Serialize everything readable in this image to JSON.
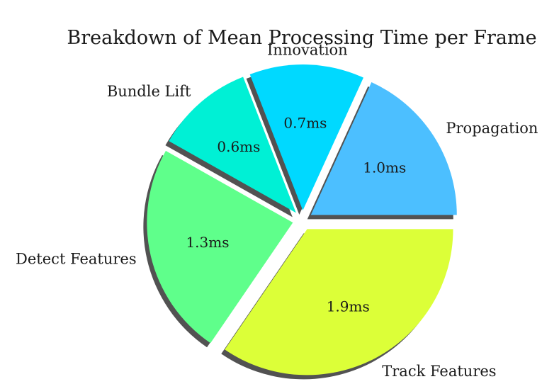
{
  "chart_data": {
    "type": "pie",
    "title": "Breakdown of Mean Processing Time per Frame",
    "slices": [
      {
        "label": "Propagation",
        "value": 1.0,
        "display": "1.0ms",
        "color": "#4cbfff"
      },
      {
        "label": "Innovation",
        "value": 0.7,
        "display": "0.7ms",
        "color": "#00d9ff"
      },
      {
        "label": "Bundle Lift",
        "value": 0.6,
        "display": "0.6ms",
        "color": "#00f0d5"
      },
      {
        "label": "Detect Features",
        "value": 1.3,
        "display": "1.3ms",
        "color": "#5fff8b"
      },
      {
        "label": "Track Features",
        "value": 1.9,
        "display": "1.9ms",
        "color": "#dcff38"
      }
    ],
    "units": "ms",
    "exploded": true,
    "shadow": true,
    "legend": "none"
  }
}
